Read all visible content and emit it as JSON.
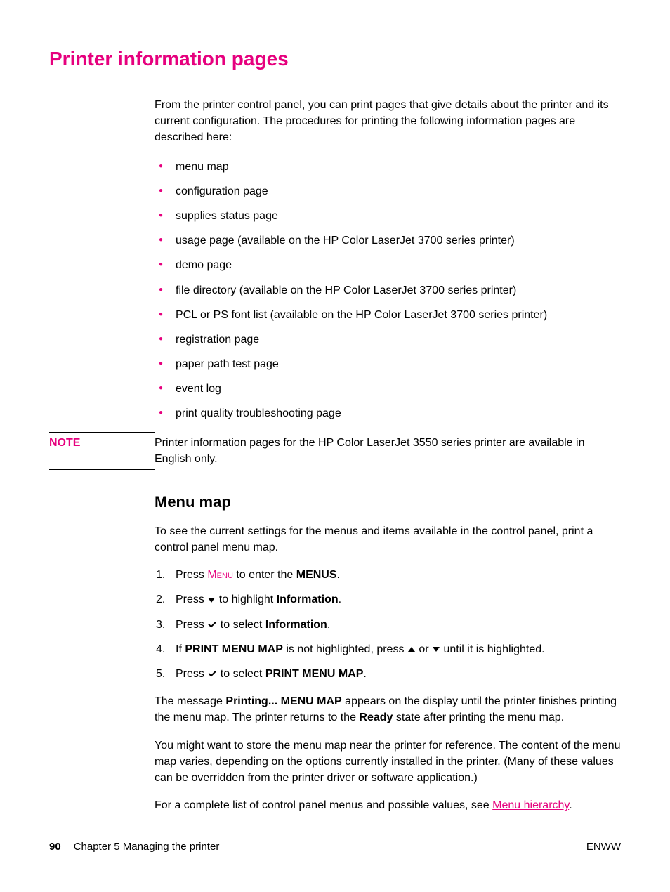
{
  "title": "Printer information pages",
  "intro": "From the printer control panel, you can print pages that give details about the printer and its current configuration. The procedures for printing the following information pages are described here:",
  "bullets": [
    "menu map",
    "configuration page",
    "supplies status page",
    "usage page (available on the HP Color LaserJet 3700 series printer)",
    "demo page",
    "file directory (available on the HP Color LaserJet 3700 series printer)",
    "PCL or PS font list (available on the HP Color LaserJet 3700 series printer)",
    "registration page",
    "paper path test page",
    "event log",
    "print quality troubleshooting page"
  ],
  "note": {
    "label": "NOTE",
    "text": "Printer information pages for the HP Color LaserJet 3550 series printer are available in English only."
  },
  "section": {
    "heading": "Menu map",
    "intro": "To see the current settings for the menus and items available in the control panel, print a control panel menu map.",
    "steps": {
      "s1": {
        "pre": "Press ",
        "menu": "Menu",
        "mid": " to enter the ",
        "bold": "MENUS",
        "post": "."
      },
      "s2": {
        "pre": "Press ",
        "mid": " to highlight ",
        "bold": "Information",
        "post": "."
      },
      "s3": {
        "pre": "Press ",
        "mid": " to select ",
        "bold": "Information",
        "post": "."
      },
      "s4": {
        "pre": "If ",
        "bold": "PRINT MENU MAP",
        "mid1": " is not highlighted, press ",
        "mid2": " or ",
        "post": " until it is highlighted."
      },
      "s5": {
        "pre": "Press ",
        "mid": " to select ",
        "bold": "PRINT MENU MAP",
        "post": "."
      }
    },
    "para1": {
      "a": "The message ",
      "b": "Printing... MENU MAP",
      "c": " appears on the display until the printer finishes printing the menu map. The printer returns to the ",
      "d": "Ready",
      "e": " state after printing the menu map."
    },
    "para2": "You might want to store the menu map near the printer for reference. The content of the menu map varies, depending on the options currently installed in the printer. (Many of these values can be overridden from the printer driver or software application.)",
    "para3": {
      "a": "For a complete list of control panel menus and possible values, see ",
      "link": "Menu hierarchy",
      "b": "."
    }
  },
  "footer": {
    "page": "90",
    "chapter": "Chapter 5   Managing the printer",
    "right": "ENWW"
  },
  "colors": {
    "accent": "#e6007e",
    "text": "#000000",
    "background": "#ffffff"
  }
}
